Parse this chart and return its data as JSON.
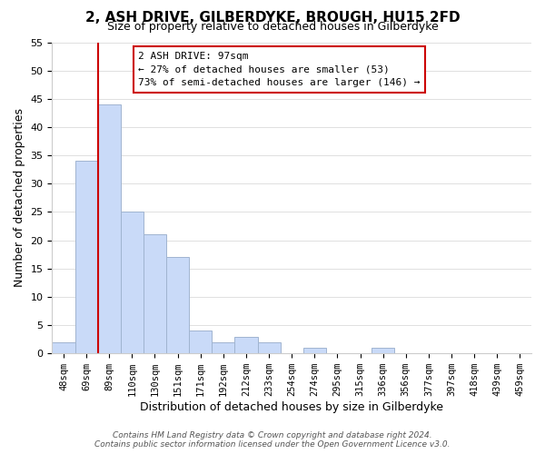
{
  "title": "2, ASH DRIVE, GILBERDYKE, BROUGH, HU15 2FD",
  "subtitle": "Size of property relative to detached houses in Gilberdyke",
  "xlabel": "Distribution of detached houses by size in Gilberdyke",
  "ylabel": "Number of detached properties",
  "bin_labels": [
    "48sqm",
    "69sqm",
    "89sqm",
    "110sqm",
    "130sqm",
    "151sqm",
    "171sqm",
    "192sqm",
    "212sqm",
    "233sqm",
    "254sqm",
    "274sqm",
    "295sqm",
    "315sqm",
    "336sqm",
    "356sqm",
    "377sqm",
    "397sqm",
    "418sqm",
    "439sqm",
    "459sqm"
  ],
  "bar_heights": [
    2,
    34,
    44,
    25,
    21,
    17,
    4,
    2,
    3,
    2,
    0,
    1,
    0,
    0,
    1,
    0,
    0,
    0,
    0,
    0,
    0
  ],
  "bar_color": "#c9daf8",
  "bar_edge_color": "#a0b4d0",
  "vline_x_index": 2,
  "vline_color": "#cc0000",
  "ylim": [
    0,
    55
  ],
  "yticks": [
    0,
    5,
    10,
    15,
    20,
    25,
    30,
    35,
    40,
    45,
    50,
    55
  ],
  "annotation_text": "2 ASH DRIVE: 97sqm\n← 27% of detached houses are smaller (53)\n73% of semi-detached houses are larger (146) →",
  "annotation_box_color": "#ffffff",
  "annotation_box_edge": "#cc0000",
  "footer_line1": "Contains HM Land Registry data © Crown copyright and database right 2024.",
  "footer_line2": "Contains public sector information licensed under the Open Government Licence v3.0.",
  "background_color": "#ffffff",
  "grid_color": "#e0e0e0"
}
